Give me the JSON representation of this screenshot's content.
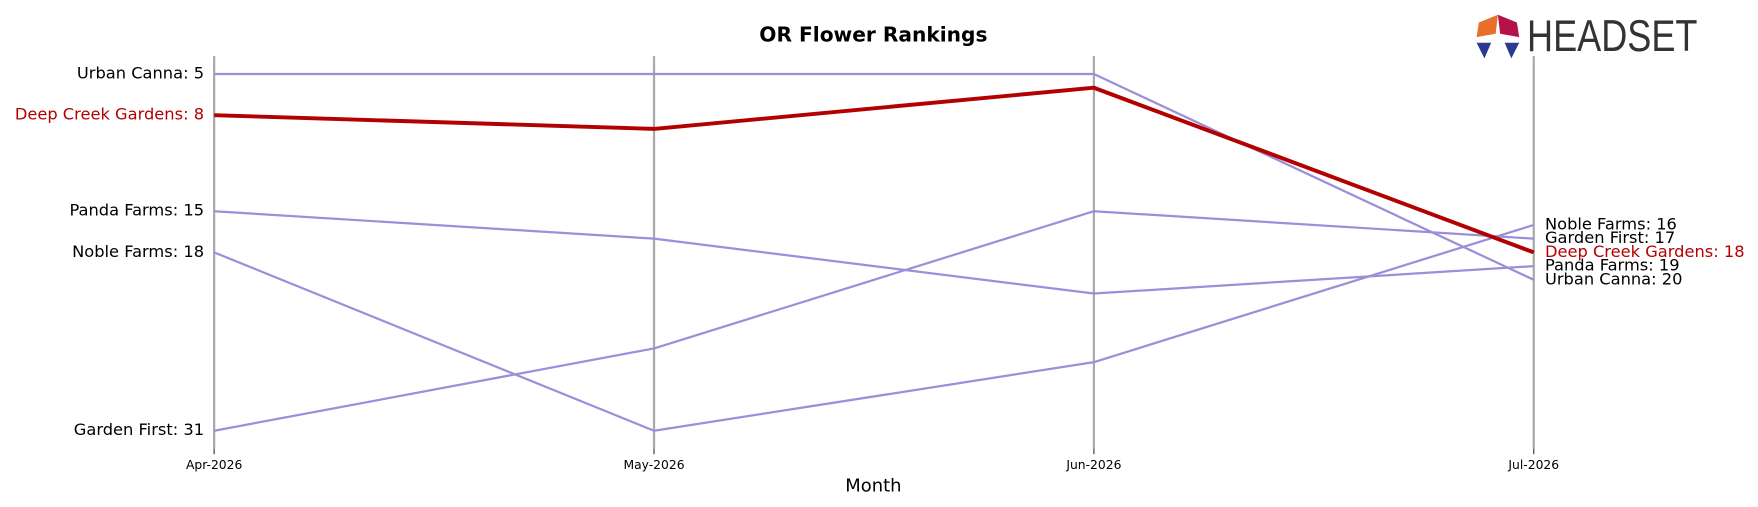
{
  "chart_data": {
    "type": "bump",
    "title": "OR Flower Rankings",
    "x_label": "Month",
    "logo": "HEADSET",
    "categories": [
      "Apr-2026",
      "May-2026",
      "Jun-2026",
      "Jul-2026"
    ],
    "ylim": [
      32.3,
      3.7
    ],
    "inverted": true,
    "grid": true,
    "series": [
      {
        "color": "#9b8fd9",
        "highlight": false,
        "values": [
          5,
          5,
          5,
          20
        ],
        "value_labels": [
          "Urban Canna: 5",
          null,
          null,
          "Urban Canna: 20"
        ]
      },
      {
        "color": "#9b8fd9",
        "highlight": false,
        "values": [
          15,
          17,
          21,
          19
        ],
        "value_labels": [
          "Panda Farms: 15",
          null,
          null,
          "Panda Farms: 19"
        ]
      },
      {
        "color": "#9b8fd9",
        "highlight": false,
        "values": [
          18,
          31,
          26,
          16
        ],
        "value_labels": [
          "Noble Farms: 18",
          null,
          null,
          "Noble Farms: 16"
        ]
      },
      {
        "color": "#9b8fd9",
        "highlight": false,
        "values": [
          31,
          25,
          15,
          17
        ],
        "value_labels": [
          "Garden First: 31",
          null,
          null,
          "Garden First: 17"
        ]
      },
      {
        "color": "#b30000",
        "highlight": true,
        "values": [
          8,
          9,
          6,
          18
        ],
        "value_labels": [
          "Deep Creek Gardens: 8",
          null,
          null,
          "Deep Creek Gardens: 18"
        ]
      }
    ]
  }
}
